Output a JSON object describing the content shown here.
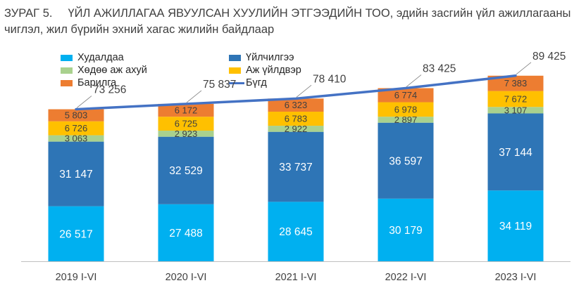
{
  "title": {
    "number": "ЗУРАГ 5.",
    "text": "ҮЙЛ АЖИЛЛАГАА ЯВУУЛСАН ХУУЛИЙН ЭТГЭЭДИЙН ТОО, эдийн засгийн үйл ажиллагааны чиглэл,  жил бүрийн эхний хагас жилийн байдлаар"
  },
  "colors": {
    "trade": "#00B0F0",
    "services": "#2E75B6",
    "agriculture": "#A9D18E",
    "industry": "#FFC000",
    "construction": "#ED7D31",
    "total": "#4472C4",
    "axis": "#BFBFBF"
  },
  "chart_data": {
    "type": "bar",
    "stacked": true,
    "categories": [
      "2019 I-VI",
      "2020 I-VI",
      "2021 I-VI",
      "2022 I-VI",
      "2023 I-VI"
    ],
    "series": [
      {
        "name": "Худалдаа",
        "key": "trade",
        "values": [
          26517,
          27488,
          28645,
          30179,
          34119
        ],
        "labels": [
          "26 517",
          "27 488",
          "28 645",
          "30 179",
          "34 119"
        ]
      },
      {
        "name": "Үйлчилгээ",
        "key": "services",
        "values": [
          31147,
          32529,
          33737,
          36597,
          37144
        ],
        "labels": [
          "31 147",
          "32 529",
          "33 737",
          "36 597",
          "37 144"
        ]
      },
      {
        "name": "Хөдөө аж ахуй",
        "key": "agriculture",
        "values": [
          3063,
          2923,
          2922,
          2897,
          3107
        ],
        "labels": [
          "3 063",
          "2 923",
          "2 922",
          "2 897",
          "3 107"
        ]
      },
      {
        "name": "Аж үйлдвэр",
        "key": "industry",
        "values": [
          6726,
          6725,
          6783,
          6978,
          7672
        ],
        "labels": [
          "6 726",
          "6 725",
          "6 783",
          "6 978",
          "7 672"
        ]
      },
      {
        "name": "Барилга",
        "key": "construction",
        "values": [
          5803,
          6172,
          6323,
          6774,
          7383
        ],
        "labels": [
          "5 803",
          "6 172",
          "6 323",
          "6 774",
          "7 383"
        ]
      }
    ],
    "total": {
      "name": "Бүгд",
      "type": "line",
      "values": [
        73256,
        75837,
        78410,
        83425,
        89425
      ],
      "labels": [
        "73 256",
        "75 837",
        "78 410",
        "83 425",
        "89 425"
      ]
    },
    "ylim": [
      0,
      110000
    ],
    "legend_position": "top-left",
    "grid": false
  }
}
